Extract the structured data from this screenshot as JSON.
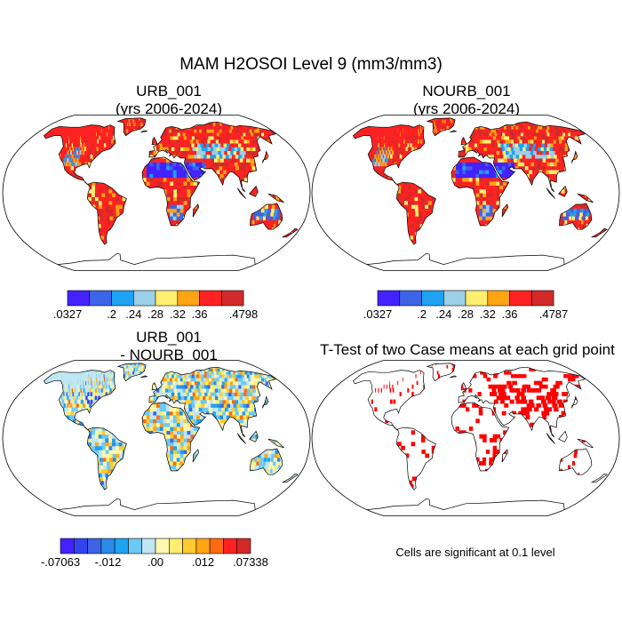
{
  "figure_title": "MAM H2OSOI Level 9 (mm3/mm3)",
  "colors": {
    "abs_scale": [
      "#4422ff",
      "#3d64e6",
      "#1ea2f2",
      "#9ccfe8",
      "#ffee70",
      "#ffa412",
      "#ff2222",
      "#d22a2a"
    ],
    "diff_scale": [
      "#4422ff",
      "#3344ee",
      "#3d64e6",
      "#2a8ae8",
      "#1ea2f2",
      "#6cc8f4",
      "#bfe6f2",
      "#fff7b0",
      "#ffee70",
      "#ffca30",
      "#ffa412",
      "#ff6a10",
      "#ff2222",
      "#d22a2a"
    ],
    "ocean": "#ffffff",
    "land_outline": "#000000",
    "significance": "#ff0000"
  },
  "chart_data": [
    {
      "type": "map",
      "projection": "Robinson",
      "title": "URB_001",
      "subtitle": "(yrs 2006-2024)",
      "colorbar": {
        "labels": [
          ".0327",
          ".2",
          ".24",
          ".28",
          ".32",
          ".36",
          ".4798"
        ],
        "min": 0.0327,
        "max": 0.4798
      }
    },
    {
      "type": "map",
      "projection": "Robinson",
      "title": "NOURB_001",
      "subtitle": "(yrs 2006-2024)",
      "colorbar": {
        "labels": [
          ".0327",
          ".2",
          ".24",
          ".28",
          ".32",
          ".36",
          ".4787"
        ],
        "min": 0.0327,
        "max": 0.4787
      }
    },
    {
      "type": "map",
      "projection": "Robinson",
      "title": "URB_001",
      "subtitle": "- NOURB_001",
      "colorbar": {
        "labels": [
          "-.07063",
          "-.012",
          ".00",
          ".012",
          ".07338"
        ],
        "min": -0.07063,
        "max": 0.07338
      }
    },
    {
      "type": "map",
      "projection": "Robinson",
      "title": "T-Test of two Case means at each grid point",
      "note": "Cells are significant at 0.1 level"
    }
  ]
}
